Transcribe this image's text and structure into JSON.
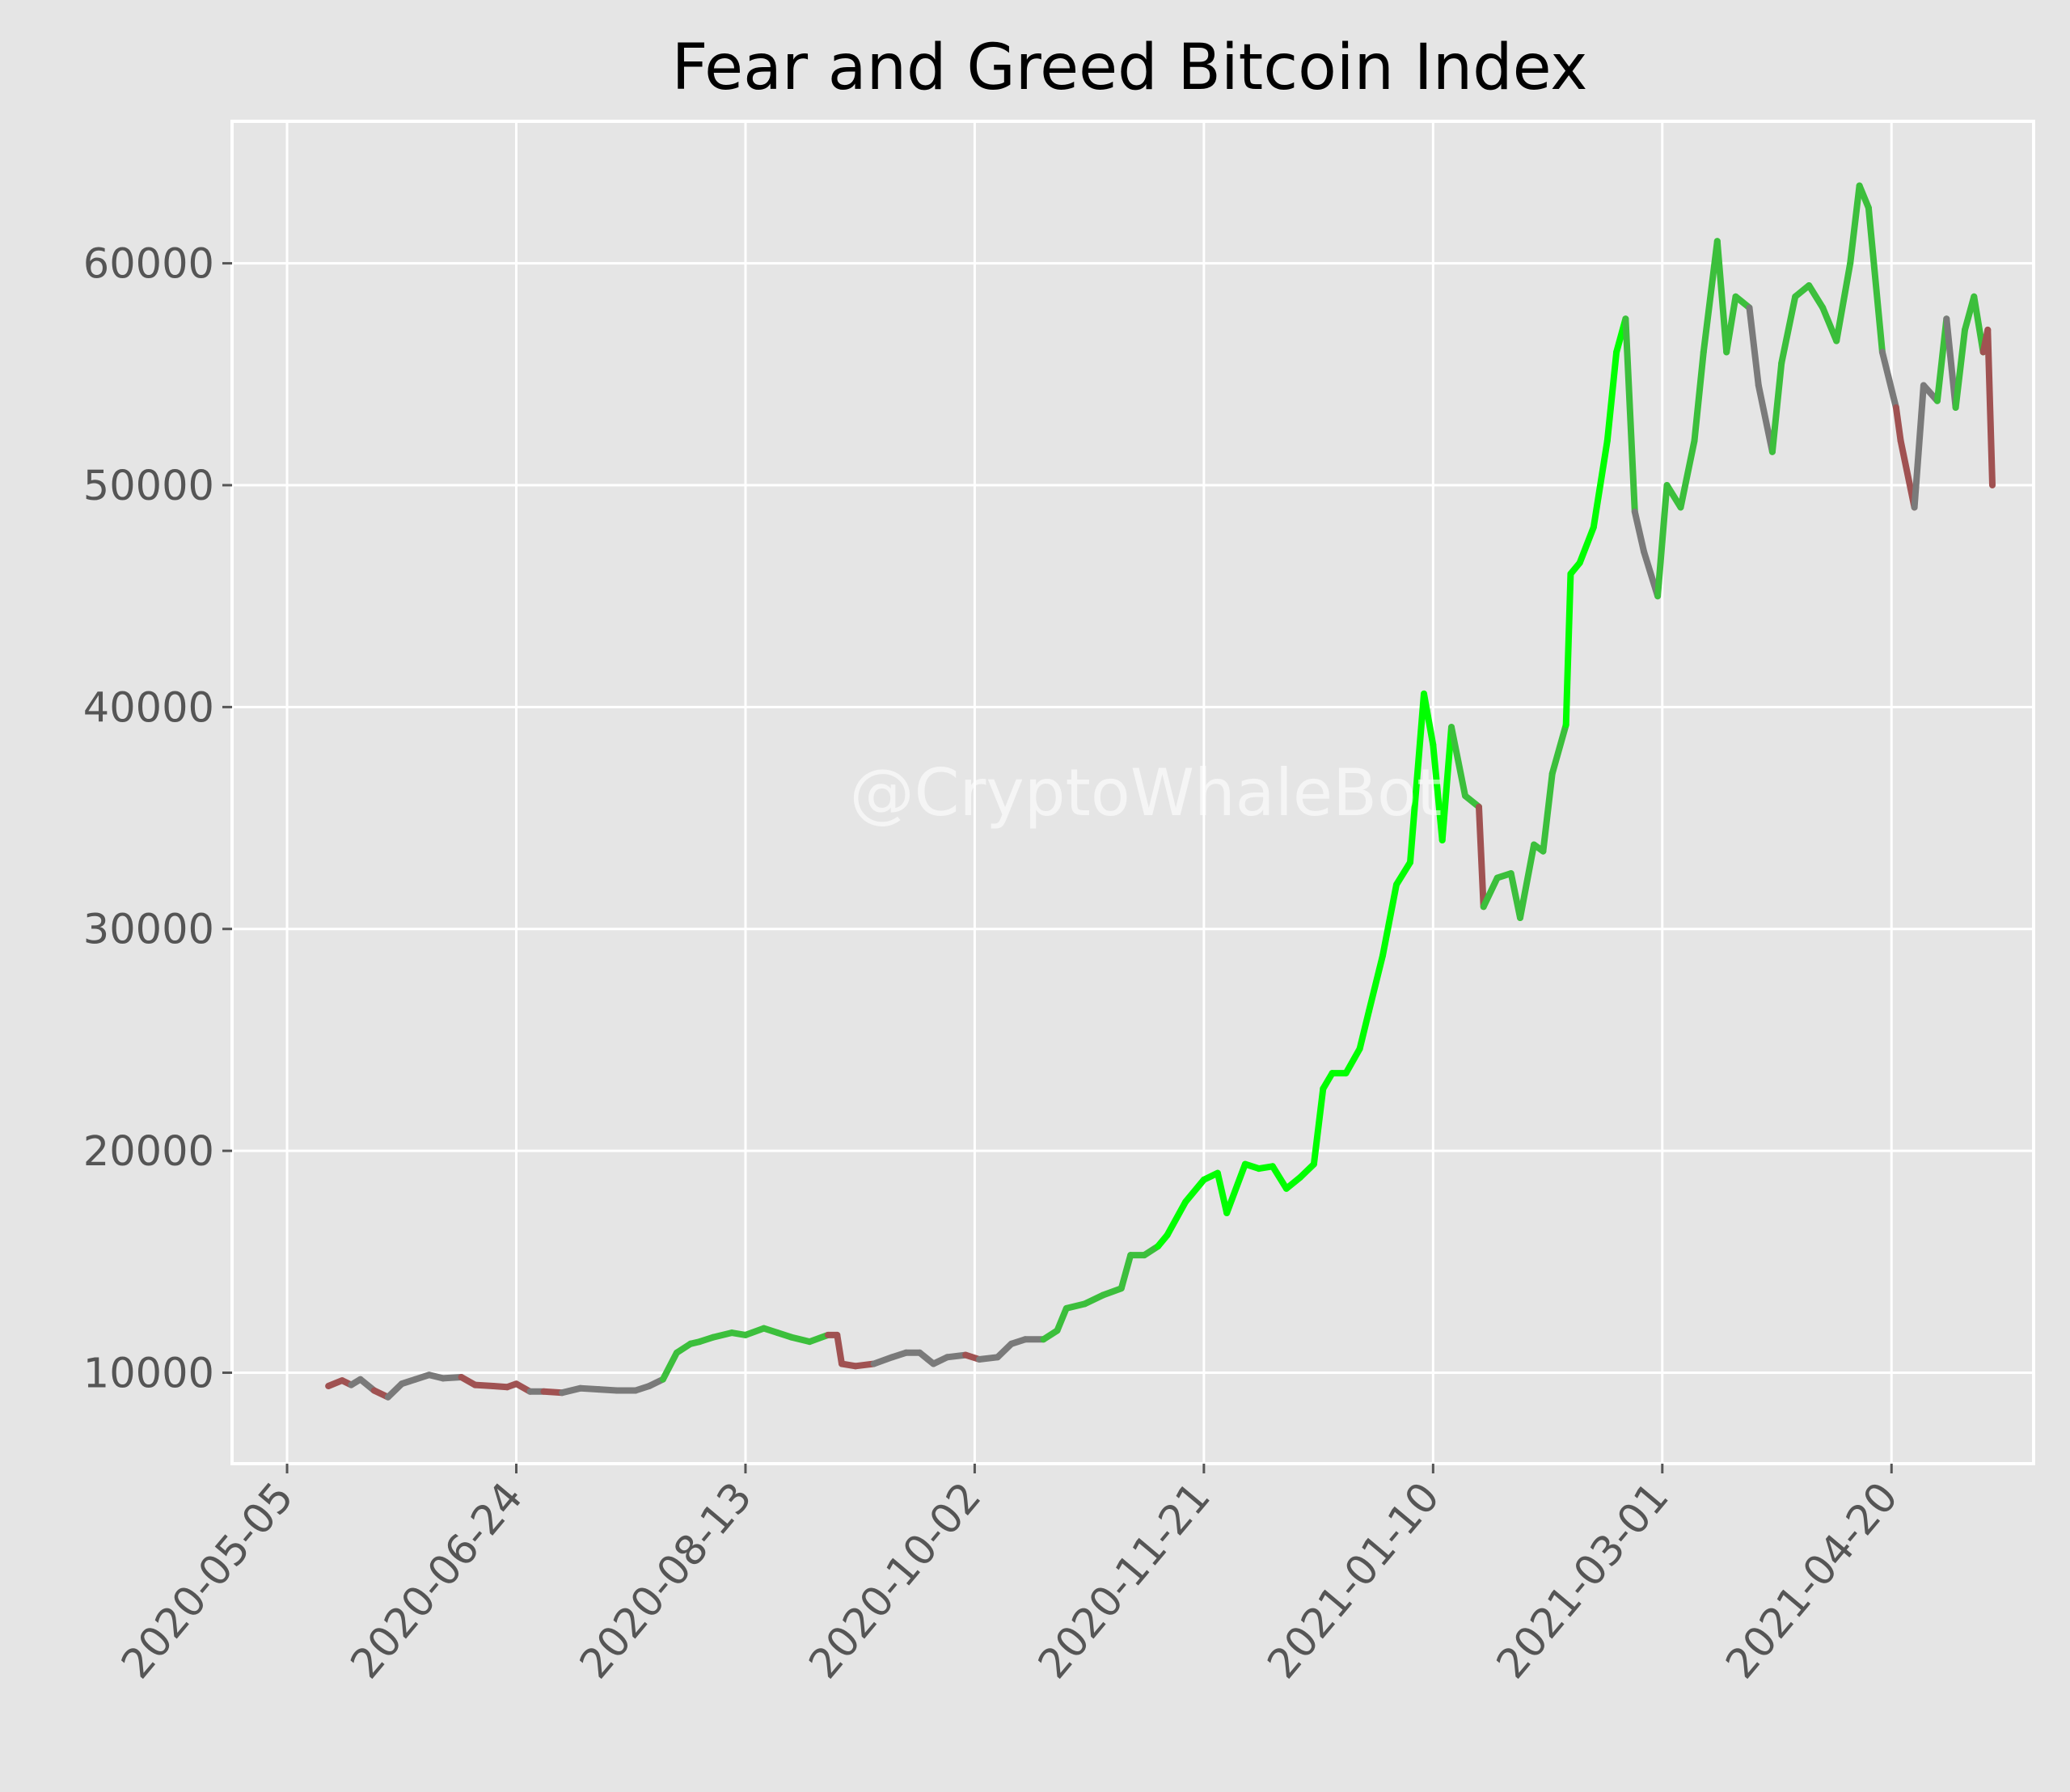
{
  "chart_data": {
    "type": "line",
    "title": "Fear and Greed Bitcoin Index",
    "xlabel": "",
    "ylabel": "",
    "x_ticks": [
      "2020-05-05",
      "2020-06-24",
      "2020-08-13",
      "2020-10-02",
      "2020-11-21",
      "2021-01-10",
      "2021-03-01",
      "2021-04-20"
    ],
    "y_ticks": [
      10000,
      20000,
      30000,
      40000,
      50000,
      60000
    ],
    "xlim": [
      "2020-04-23",
      "2021-05-21"
    ],
    "ylim": [
      5900,
      66400
    ],
    "grid": true,
    "legend": "none",
    "colors": {
      "fear": "#a05252",
      "neutral": "#7a7a7a",
      "greed": "#3cbf3c",
      "extreme_greed": "#00ff00",
      "grid": "#ffffff",
      "background": "#e5e5e5",
      "axis_text": "#555555"
    },
    "annotations": [
      {
        "text": "@CryptoWhaleBot"
      }
    ],
    "series": [
      {
        "points": [
          [
            "2020-05-14",
            9400,
            "neutral"
          ],
          [
            "2020-05-17",
            9650,
            "fear"
          ],
          [
            "2020-05-19",
            9450,
            "fear"
          ],
          [
            "2020-05-21",
            9700,
            "neutral"
          ],
          [
            "2020-05-24",
            9200,
            "neutral"
          ],
          [
            "2020-05-27",
            8900,
            "fear"
          ],
          [
            "2020-05-30",
            9500,
            "neutral"
          ],
          [
            "2020-06-02",
            9700,
            "neutral"
          ],
          [
            "2020-06-05",
            9900,
            "neutral"
          ],
          [
            "2020-06-08",
            9750,
            "neutral"
          ],
          [
            "2020-06-12",
            9800,
            "neutral"
          ],
          [
            "2020-06-15",
            9450,
            "fear"
          ],
          [
            "2020-06-19",
            9400,
            "fear"
          ],
          [
            "2020-06-22",
            9350,
            "fear"
          ],
          [
            "2020-06-24",
            9500,
            "fear"
          ],
          [
            "2020-06-27",
            9150,
            "fear"
          ],
          [
            "2020-06-30",
            9150,
            "neutral"
          ],
          [
            "2020-07-04",
            9100,
            "fear"
          ],
          [
            "2020-07-08",
            9300,
            "neutral"
          ],
          [
            "2020-07-12",
            9250,
            "neutral"
          ],
          [
            "2020-07-16",
            9200,
            "neutral"
          ],
          [
            "2020-07-20",
            9200,
            "neutral"
          ],
          [
            "2020-07-23",
            9400,
            "neutral"
          ],
          [
            "2020-07-26",
            9700,
            "neutral"
          ],
          [
            "2020-07-29",
            10900,
            "greed"
          ],
          [
            "2020-08-01",
            11300,
            "greed"
          ],
          [
            "2020-08-03",
            11400,
            "greed"
          ],
          [
            "2020-08-06",
            11600,
            "greed"
          ],
          [
            "2020-08-10",
            11800,
            "greed"
          ],
          [
            "2020-08-13",
            11700,
            "greed"
          ],
          [
            "2020-08-17",
            12000,
            "greed"
          ],
          [
            "2020-08-20",
            11800,
            "greed"
          ],
          [
            "2020-08-23",
            11600,
            "greed"
          ],
          [
            "2020-08-27",
            11400,
            "greed"
          ],
          [
            "2020-08-31",
            11700,
            "greed"
          ],
          [
            "2020-09-02",
            11700,
            "fear"
          ],
          [
            "2020-09-03",
            10400,
            "fear"
          ],
          [
            "2020-09-06",
            10300,
            "fear"
          ],
          [
            "2020-09-10",
            10400,
            "fear"
          ],
          [
            "2020-09-14",
            10700,
            "neutral"
          ],
          [
            "2020-09-17",
            10900,
            "neutral"
          ],
          [
            "2020-09-20",
            10900,
            "neutral"
          ],
          [
            "2020-09-23",
            10400,
            "neutral"
          ],
          [
            "2020-09-26",
            10700,
            "neutral"
          ],
          [
            "2020-09-30",
            10800,
            "neutral"
          ],
          [
            "2020-10-03",
            10600,
            "fear"
          ],
          [
            "2020-10-07",
            10700,
            "neutral"
          ],
          [
            "2020-10-10",
            11300,
            "neutral"
          ],
          [
            "2020-10-13",
            11500,
            "neutral"
          ],
          [
            "2020-10-17",
            11500,
            "neutral"
          ],
          [
            "2020-10-20",
            11900,
            "greed"
          ],
          [
            "2020-10-22",
            12900,
            "greed"
          ],
          [
            "2020-10-26",
            13100,
            "greed"
          ],
          [
            "2020-10-30",
            13500,
            "greed"
          ],
          [
            "2020-11-03",
            13800,
            "greed"
          ],
          [
            "2020-11-05",
            15300,
            "greed"
          ],
          [
            "2020-11-08",
            15300,
            "greed"
          ],
          [
            "2020-11-11",
            15700,
            "greed"
          ],
          [
            "2020-11-13",
            16200,
            "extreme_greed"
          ],
          [
            "2020-11-17",
            17700,
            "extreme_greed"
          ],
          [
            "2020-11-21",
            18700,
            "extreme_greed"
          ],
          [
            "2020-11-24",
            19000,
            "extreme_greed"
          ],
          [
            "2020-11-26",
            17200,
            "extreme_greed"
          ],
          [
            "2020-11-30",
            19400,
            "extreme_greed"
          ],
          [
            "2020-12-03",
            19200,
            "extreme_greed"
          ],
          [
            "2020-12-06",
            19300,
            "extreme_greed"
          ],
          [
            "2020-12-09",
            18300,
            "extreme_greed"
          ],
          [
            "2020-12-12",
            18800,
            "extreme_greed"
          ],
          [
            "2020-12-15",
            19400,
            "extreme_greed"
          ],
          [
            "2020-12-17",
            22800,
            "extreme_greed"
          ],
          [
            "2020-12-19",
            23500,
            "extreme_greed"
          ],
          [
            "2020-12-22",
            23500,
            "extreme_greed"
          ],
          [
            "2020-12-25",
            24600,
            "extreme_greed"
          ],
          [
            "2020-12-27",
            26300,
            "extreme_greed"
          ],
          [
            "2020-12-30",
            28800,
            "extreme_greed"
          ],
          [
            "2021-01-02",
            32000,
            "extreme_greed"
          ],
          [
            "2021-01-05",
            33000,
            "extreme_greed"
          ],
          [
            "2021-01-08",
            40600,
            "extreme_greed"
          ],
          [
            "2021-01-10",
            38300,
            "extreme_greed"
          ],
          [
            "2021-01-12",
            34000,
            "extreme_greed"
          ],
          [
            "2021-01-14",
            39100,
            "extreme_greed"
          ],
          [
            "2021-01-17",
            36000,
            "greed"
          ],
          [
            "2021-01-20",
            35500,
            "greed"
          ],
          [
            "2021-01-21",
            31000,
            "fear"
          ],
          [
            "2021-01-24",
            32300,
            "greed"
          ],
          [
            "2021-01-27",
            32500,
            "greed"
          ],
          [
            "2021-01-29",
            30500,
            "greed"
          ],
          [
            "2021-02-01",
            33800,
            "greed"
          ],
          [
            "2021-02-03",
            33500,
            "greed"
          ],
          [
            "2021-02-05",
            37000,
            "greed"
          ],
          [
            "2021-02-08",
            39200,
            "greed"
          ],
          [
            "2021-02-09",
            46000,
            "extreme_greed"
          ],
          [
            "2021-02-11",
            46500,
            "extreme_greed"
          ],
          [
            "2021-02-14",
            48100,
            "extreme_greed"
          ],
          [
            "2021-02-17",
            52000,
            "extreme_greed"
          ],
          [
            "2021-02-19",
            56000,
            "extreme_greed"
          ],
          [
            "2021-02-21",
            57500,
            "extreme_greed"
          ],
          [
            "2021-02-23",
            48800,
            "greed"
          ],
          [
            "2021-02-25",
            47000,
            "neutral"
          ],
          [
            "2021-02-28",
            45000,
            "neutral"
          ],
          [
            "2021-03-02",
            50000,
            "greed"
          ],
          [
            "2021-03-05",
            49000,
            "greed"
          ],
          [
            "2021-03-08",
            52000,
            "greed"
          ],
          [
            "2021-03-10",
            56000,
            "greed"
          ],
          [
            "2021-03-13",
            61000,
            "greed"
          ],
          [
            "2021-03-15",
            56000,
            "greed"
          ],
          [
            "2021-03-17",
            58500,
            "greed"
          ],
          [
            "2021-03-20",
            58000,
            "greed"
          ],
          [
            "2021-03-22",
            54500,
            "neutral"
          ],
          [
            "2021-03-25",
            51500,
            "neutral"
          ],
          [
            "2021-03-27",
            55500,
            "greed"
          ],
          [
            "2021-03-30",
            58500,
            "greed"
          ],
          [
            "2021-04-02",
            59000,
            "greed"
          ],
          [
            "2021-04-05",
            58000,
            "greed"
          ],
          [
            "2021-04-08",
            56500,
            "greed"
          ],
          [
            "2021-04-11",
            60000,
            "greed"
          ],
          [
            "2021-04-13",
            63500,
            "greed"
          ],
          [
            "2021-04-15",
            62500,
            "greed"
          ],
          [
            "2021-04-18",
            56000,
            "greed"
          ],
          [
            "2021-04-21",
            53500,
            "neutral"
          ],
          [
            "2021-04-22",
            52000,
            "fear"
          ],
          [
            "2021-04-25",
            49000,
            "fear"
          ],
          [
            "2021-04-27",
            54500,
            "neutral"
          ],
          [
            "2021-04-30",
            53800,
            "neutral"
          ],
          [
            "2021-05-02",
            57500,
            "greed"
          ],
          [
            "2021-05-04",
            53500,
            "neutral"
          ],
          [
            "2021-05-06",
            57000,
            "greed"
          ],
          [
            "2021-05-08",
            58500,
            "greed"
          ],
          [
            "2021-05-10",
            56000,
            "greed"
          ],
          [
            "2021-05-11",
            57000,
            "fear"
          ],
          [
            "2021-05-12",
            50000,
            "fear"
          ]
        ]
      }
    ]
  }
}
